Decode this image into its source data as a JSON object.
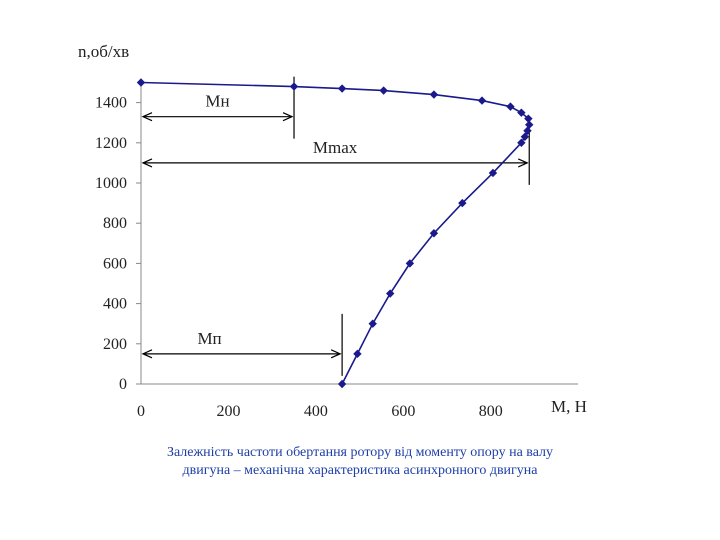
{
  "chart_data": {
    "type": "scatter",
    "title": "",
    "xlabel": "M, H",
    "ylabel": "n,об/хв",
    "xlim": [
      0,
      1000
    ],
    "ylim": [
      0,
      1500
    ],
    "x_ticks": [
      "0",
      "200",
      "400",
      "600",
      "800"
    ],
    "y_ticks": [
      "0",
      "200",
      "400",
      "600",
      "800",
      "1000",
      "1200",
      "1400"
    ],
    "grid": false,
    "legend": "none",
    "color": "#1a1a8c",
    "series": [
      {
        "points": [
          {
            "x": 460,
            "y": 0
          },
          {
            "x": 495,
            "y": 150
          },
          {
            "x": 530,
            "y": 300
          },
          {
            "x": 570,
            "y": 450
          },
          {
            "x": 615,
            "y": 600
          },
          {
            "x": 670,
            "y": 750
          },
          {
            "x": 735,
            "y": 900
          },
          {
            "x": 805,
            "y": 1050
          },
          {
            "x": 870,
            "y": 1200
          },
          {
            "x": 878,
            "y": 1230
          },
          {
            "x": 884,
            "y": 1260
          },
          {
            "x": 888,
            "y": 1290
          },
          {
            "x": 886,
            "y": 1320
          },
          {
            "x": 870,
            "y": 1350
          },
          {
            "x": 845,
            "y": 1380
          },
          {
            "x": 780,
            "y": 1410
          },
          {
            "x": 670,
            "y": 1440
          },
          {
            "x": 555,
            "y": 1460
          },
          {
            "x": 460,
            "y": 1470
          },
          {
            "x": 350,
            "y": 1480
          },
          {
            "x": 0,
            "y": 1500
          }
        ]
      }
    ],
    "annotations": [
      {
        "label": "Мн",
        "from": 0,
        "to": 350,
        "y": 1330,
        "end_x": 350
      },
      {
        "label": "Mmax",
        "from": 0,
        "to": 888,
        "y": 1100,
        "end_x": 888
      },
      {
        "label": "Мп",
        "from": 0,
        "to": 460,
        "y": 150,
        "end_x": 460
      }
    ]
  },
  "caption": {
    "line1": "Залежність частоти обертання ротору від моменту опору на валу",
    "line2": "двигуна – механічна характеристика асинхронного двигуна"
  }
}
